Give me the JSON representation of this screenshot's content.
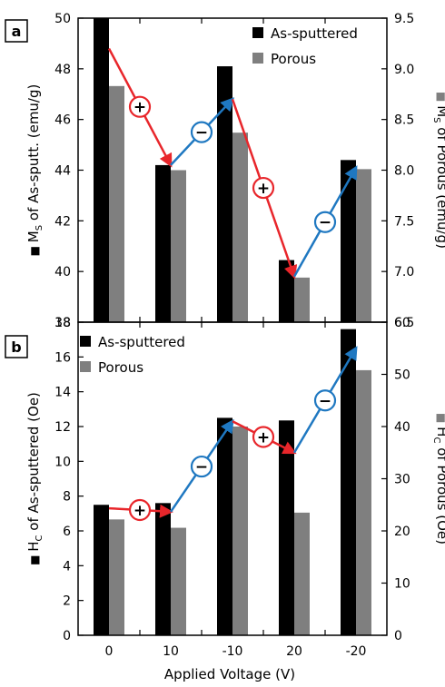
{
  "colors": {
    "as_sputtered": "#000000",
    "porous": "#7f7f7f",
    "increase_arrow": "#e8262b",
    "decrease_arrow": "#1f78c1"
  },
  "symbols": {
    "plus": "+",
    "minus": "−"
  },
  "xlabel": "Applied Voltage (V)",
  "chart_data": [
    {
      "panel": "a",
      "type": "bar",
      "categories": [
        "0",
        "10",
        "-10",
        "20",
        "-20"
      ],
      "series": [
        {
          "name": "As-sputtered",
          "axis": "left",
          "values": [
            50.0,
            44.2,
            48.1,
            40.45,
            44.4
          ]
        },
        {
          "name": "Porous",
          "axis": "right",
          "values": [
            8.83,
            8.0,
            8.37,
            6.94,
            8.01
          ]
        }
      ],
      "ylabel_left": {
        "prefix": "M",
        "sub": "S",
        "suffix": " of As-sputt. (emu/g)"
      },
      "ylabel_right": {
        "prefix": "M",
        "sub": "S",
        "suffix": " of Porous (emu/g)"
      },
      "ylim_left": [
        38,
        50
      ],
      "yticks_left": [
        "38",
        "40",
        "42",
        "44",
        "46",
        "48",
        "50"
      ],
      "ylim_right": [
        6.5,
        9.5
      ],
      "yticks_right": [
        "6.5",
        "7.0",
        "7.5",
        "8.0",
        "8.5",
        "9.0",
        "9.5"
      ],
      "legend": "top-right",
      "arrows": [
        {
          "from": [
            0,
            48.8
          ],
          "to": [
            1,
            44.2
          ],
          "sign": "plus"
        },
        {
          "from": [
            1,
            44.2
          ],
          "to": [
            2,
            46.8
          ],
          "sign": "minus"
        },
        {
          "from": [
            2,
            46.8
          ],
          "to": [
            3,
            39.8
          ],
          "sign": "plus"
        },
        {
          "from": [
            3,
            39.8
          ],
          "to": [
            4,
            44.1
          ],
          "sign": "minus"
        }
      ]
    },
    {
      "panel": "b",
      "type": "bar",
      "categories": [
        "0",
        "10",
        "-10",
        "20",
        "-20"
      ],
      "series": [
        {
          "name": "As-sputtered",
          "axis": "left",
          "values": [
            7.5,
            7.6,
            12.5,
            12.35,
            17.6
          ]
        },
        {
          "name": "Porous",
          "axis": "right",
          "values": [
            22.2,
            20.6,
            40.0,
            23.5,
            50.8
          ]
        }
      ],
      "ylabel_left": {
        "prefix": "H",
        "sub": "C",
        "suffix": " of As-sputtered (Oe)"
      },
      "ylabel_right": {
        "prefix": "H",
        "sub": "C",
        "suffix": " of Porous (Oe)"
      },
      "ylim_left": [
        0,
        18
      ],
      "yticks_left": [
        "0",
        "2",
        "4",
        "6",
        "8",
        "10",
        "12",
        "14",
        "16",
        "18"
      ],
      "ylim_right": [
        0,
        60
      ],
      "yticks_right": [
        "0",
        "10",
        "20",
        "30",
        "40",
        "50",
        "60"
      ],
      "legend": "top-left",
      "arrows": [
        {
          "from": [
            0,
            7.3
          ],
          "to": [
            1,
            7.1
          ],
          "sign": "plus"
        },
        {
          "from": [
            1,
            7.1
          ],
          "to": [
            2,
            12.3
          ],
          "sign": "minus"
        },
        {
          "from": [
            2,
            12.3
          ],
          "to": [
            3,
            10.5
          ],
          "sign": "plus"
        },
        {
          "from": [
            3,
            10.5
          ],
          "to": [
            4,
            16.5
          ],
          "sign": "minus"
        }
      ]
    }
  ]
}
